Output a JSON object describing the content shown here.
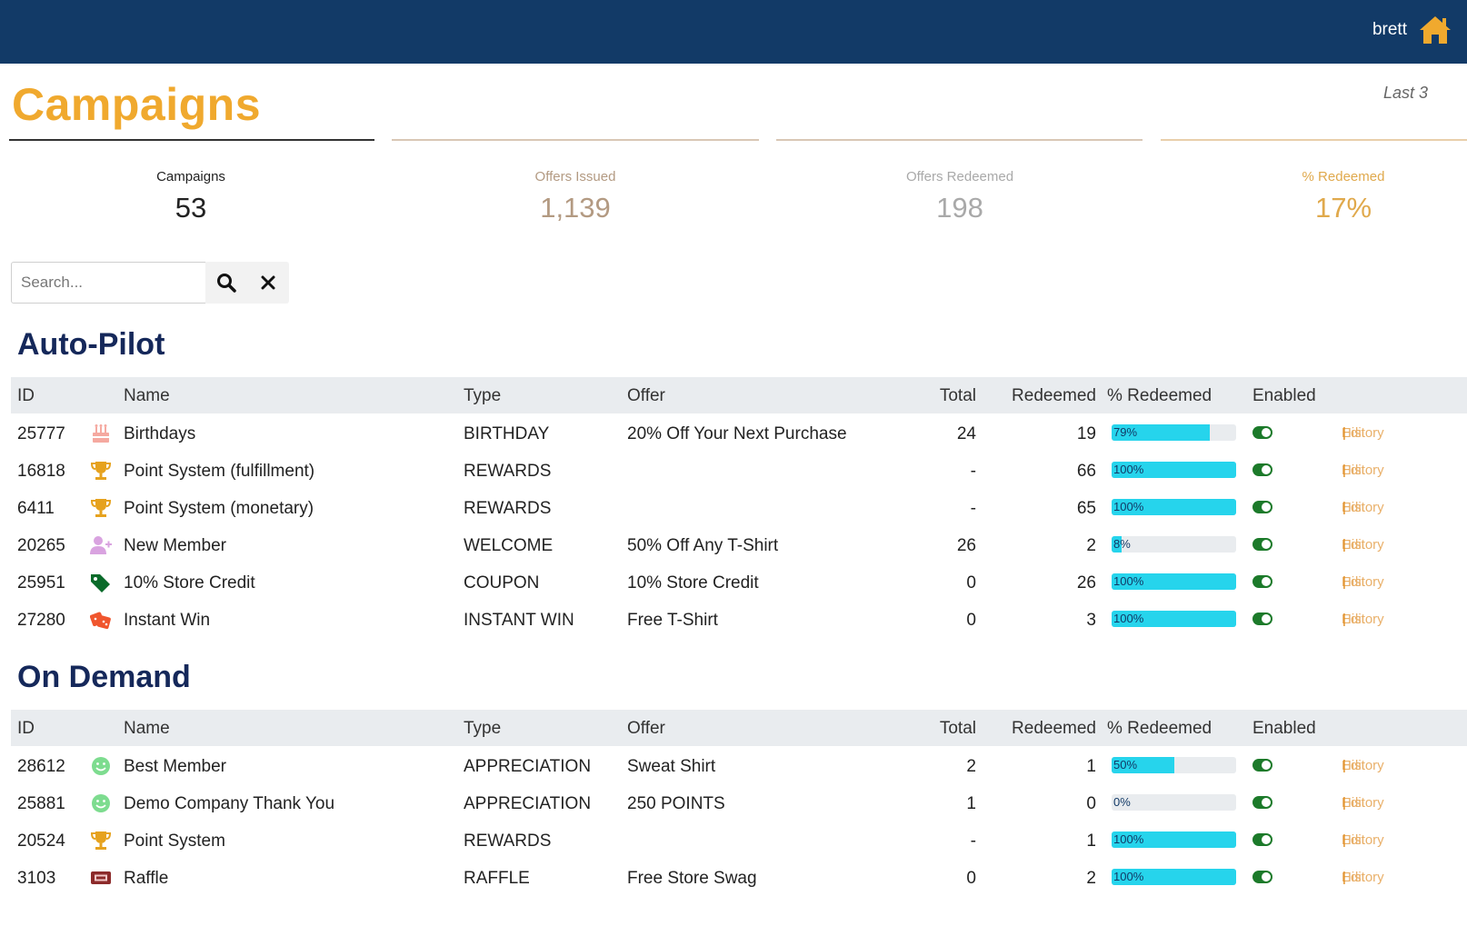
{
  "header": {
    "user": "brett",
    "bar_color": "#123a67",
    "home_icon_color": "#f0a92e"
  },
  "page": {
    "title": "Campaigns",
    "range_label": "Last 3"
  },
  "stats": [
    {
      "label": "Campaigns",
      "value": "53"
    },
    {
      "label": "Offers Issued",
      "value": "1,139"
    },
    {
      "label": "Offers Redeemed",
      "value": "198"
    },
    {
      "label": "% Redeemed",
      "value": "17%"
    }
  ],
  "search": {
    "placeholder": "Search...",
    "value": ""
  },
  "columns": {
    "id": "ID",
    "name": "Name",
    "type": "Type",
    "offer": "Offer",
    "total": "Total",
    "redeemed": "Redeemed",
    "pct": "% Redeemed",
    "enabled": "Enabled"
  },
  "row_links": {
    "history": "History",
    "edit": "Edit",
    "sep": "|"
  },
  "sections": [
    {
      "title": "Auto-Pilot",
      "rows": [
        {
          "id": "25777",
          "icon": "cake-icon",
          "name": "Birthdays",
          "type": "BIRTHDAY",
          "offer": "20% Off Your Next Purchase",
          "total": "24",
          "redeemed": "19",
          "pct": 79,
          "pct_label": "79%",
          "enabled": true
        },
        {
          "id": "16818",
          "icon": "trophy-icon",
          "name": "Point System (fulfillment)",
          "type": "REWARDS",
          "offer": "",
          "total": "-",
          "redeemed": "66",
          "pct": 100,
          "pct_label": "100%",
          "enabled": true
        },
        {
          "id": "6411",
          "icon": "trophy-icon",
          "name": "Point System (monetary)",
          "type": "REWARDS",
          "offer": "",
          "total": "-",
          "redeemed": "65",
          "pct": 100,
          "pct_label": "100%",
          "enabled": true
        },
        {
          "id": "20265",
          "icon": "user-plus-icon",
          "name": "New Member",
          "type": "WELCOME",
          "offer": "50% Off Any T-Shirt",
          "total": "26",
          "redeemed": "2",
          "pct": 8,
          "pct_label": "8%",
          "enabled": true
        },
        {
          "id": "25951",
          "icon": "tag-icon",
          "name": "10% Store Credit",
          "type": "COUPON",
          "offer": "10% Store Credit",
          "total": "0",
          "redeemed": "26",
          "pct": 100,
          "pct_label": "100%",
          "enabled": true
        },
        {
          "id": "27280",
          "icon": "dice-icon",
          "name": "Instant Win",
          "type": "INSTANT WIN",
          "offer": "Free T-Shirt",
          "total": "0",
          "redeemed": "3",
          "pct": 100,
          "pct_label": "100%",
          "enabled": true
        }
      ]
    },
    {
      "title": "On Demand",
      "rows": [
        {
          "id": "28612",
          "icon": "smile-icon",
          "name": "Best Member",
          "type": "APPRECIATION",
          "offer": "Sweat Shirt",
          "total": "2",
          "redeemed": "1",
          "pct": 50,
          "pct_label": "50%",
          "enabled": true
        },
        {
          "id": "25881",
          "icon": "smile-icon",
          "name": "Demo Company Thank You",
          "type": "APPRECIATION",
          "offer": "250 POINTS",
          "total": "1",
          "redeemed": "0",
          "pct": 0,
          "pct_label": "0%",
          "enabled": true
        },
        {
          "id": "20524",
          "icon": "trophy-icon",
          "name": "Point System",
          "type": "REWARDS",
          "offer": "",
          "total": "-",
          "redeemed": "1",
          "pct": 100,
          "pct_label": "100%",
          "enabled": true
        },
        {
          "id": "3103",
          "icon": "ticket-icon",
          "name": "Raffle",
          "type": "RAFFLE",
          "offer": "Free Store Swag",
          "total": "0",
          "redeemed": "2",
          "pct": 100,
          "pct_label": "100%",
          "enabled": true
        }
      ]
    }
  ]
}
